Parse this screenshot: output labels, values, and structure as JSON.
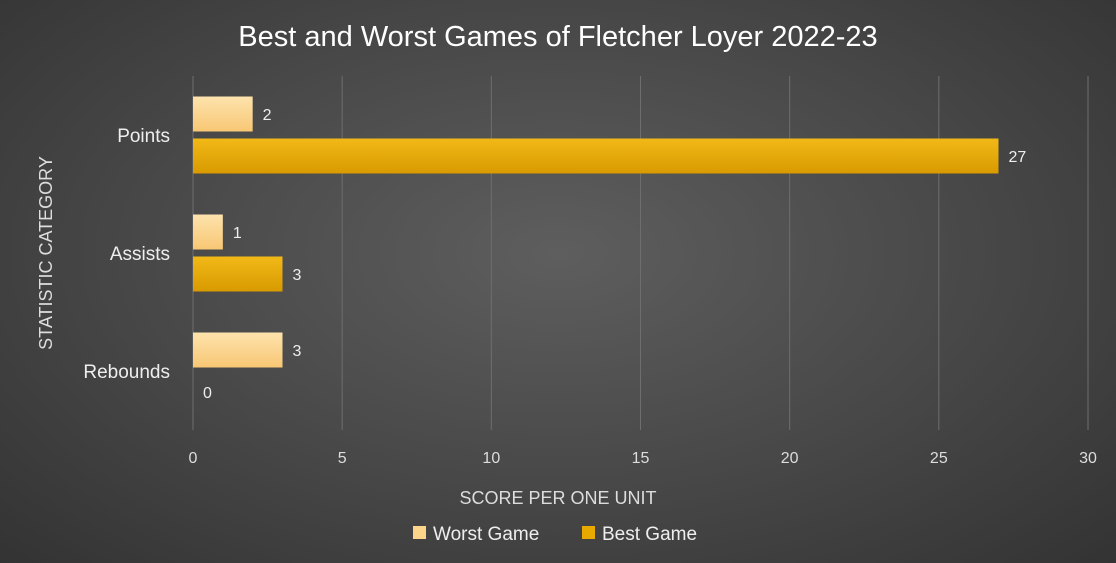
{
  "chart_data": {
    "type": "bar",
    "orientation": "horizontal",
    "title": "Best and Worst Games of Fletcher Loyer 2022-23",
    "xlabel": "SCORE PER ONE UNIT",
    "ylabel": "STATISTIC CATEGORY",
    "categories": [
      "Points",
      "Assists",
      "Rebounds"
    ],
    "xlim": [
      0,
      30
    ],
    "xticks": [
      0,
      5,
      10,
      15,
      20,
      25,
      30
    ],
    "grid": true,
    "legend_position": "bottom",
    "series": [
      {
        "name": "Worst Game",
        "values": [
          2,
          1,
          3
        ],
        "color": "#fdd58a"
      },
      {
        "name": "Best Game",
        "values": [
          27,
          3,
          0
        ],
        "color": "#e8a900"
      }
    ]
  }
}
